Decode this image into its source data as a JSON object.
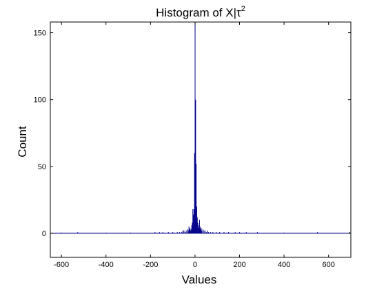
{
  "chart_data": {
    "type": "bar",
    "title": "Histogram of X|",
    "title_symbol": "τ",
    "title_superscript": "2",
    "xlabel": "Values",
    "ylabel": "Count",
    "xlim": [
      -650,
      700
    ],
    "ylim": [
      -18,
      158
    ],
    "xticks": [
      -600,
      -400,
      -200,
      0,
      200,
      400,
      600
    ],
    "yticks": [
      0,
      50,
      100,
      150
    ],
    "bar_color": "#00008B",
    "bin_width": 2.5,
    "bins": [
      {
        "x": -600,
        "count": 0.5
      },
      {
        "x": -527,
        "count": 1
      },
      {
        "x": -400,
        "count": 0.5
      },
      {
        "x": -290,
        "count": 0.5
      },
      {
        "x": -180,
        "count": 1
      },
      {
        "x": -160,
        "count": 1
      },
      {
        "x": -145,
        "count": 1
      },
      {
        "x": -120,
        "count": 1
      },
      {
        "x": -100,
        "count": 1
      },
      {
        "x": -80,
        "count": 1
      },
      {
        "x": -70,
        "count": 1
      },
      {
        "x": -60,
        "count": 1
      },
      {
        "x": -55,
        "count": 2
      },
      {
        "x": -50,
        "count": 2
      },
      {
        "x": -45,
        "count": 1
      },
      {
        "x": -40,
        "count": 2
      },
      {
        "x": -35,
        "count": 3
      },
      {
        "x": -30,
        "count": 2
      },
      {
        "x": -27.5,
        "count": 5
      },
      {
        "x": -25,
        "count": 3
      },
      {
        "x": -22.5,
        "count": 4
      },
      {
        "x": -20,
        "count": 2
      },
      {
        "x": -17.5,
        "count": 3
      },
      {
        "x": -15,
        "count": 6
      },
      {
        "x": -12.5,
        "count": 8
      },
      {
        "x": -10,
        "count": 18
      },
      {
        "x": -7.5,
        "count": 14
      },
      {
        "x": -5,
        "count": 18
      },
      {
        "x": -2.5,
        "count": 60
      },
      {
        "x": 0,
        "count": 158
      },
      {
        "x": 2.5,
        "count": 100
      },
      {
        "x": 5,
        "count": 52
      },
      {
        "x": 7.5,
        "count": 20
      },
      {
        "x": 10,
        "count": 12
      },
      {
        "x": 12.5,
        "count": 8
      },
      {
        "x": 15,
        "count": 6
      },
      {
        "x": 17.5,
        "count": 4
      },
      {
        "x": 20,
        "count": 10
      },
      {
        "x": 22.5,
        "count": 5
      },
      {
        "x": 25,
        "count": 3
      },
      {
        "x": 27.5,
        "count": 4
      },
      {
        "x": 30,
        "count": 2
      },
      {
        "x": 35,
        "count": 3
      },
      {
        "x": 40,
        "count": 2
      },
      {
        "x": 45,
        "count": 2
      },
      {
        "x": 50,
        "count": 1
      },
      {
        "x": 55,
        "count": 2
      },
      {
        "x": 60,
        "count": 1
      },
      {
        "x": 70,
        "count": 1
      },
      {
        "x": 80,
        "count": 1
      },
      {
        "x": 95,
        "count": 1
      },
      {
        "x": 110,
        "count": 1
      },
      {
        "x": 130,
        "count": 1
      },
      {
        "x": 150,
        "count": 1
      },
      {
        "x": 180,
        "count": 1
      },
      {
        "x": 200,
        "count": 1
      },
      {
        "x": 230,
        "count": 1
      },
      {
        "x": 280,
        "count": 1
      },
      {
        "x": 400,
        "count": 0.5
      },
      {
        "x": 550,
        "count": 1
      },
      {
        "x": 695,
        "count": 1
      }
    ]
  }
}
